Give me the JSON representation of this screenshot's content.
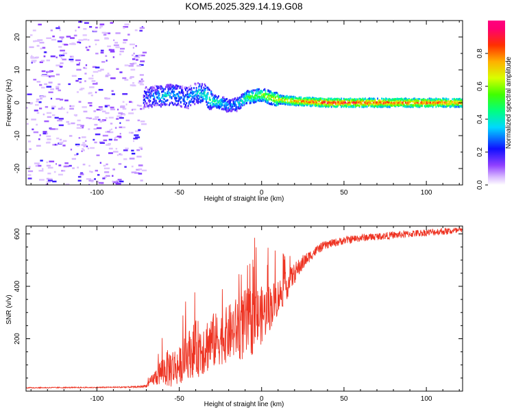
{
  "title": "KOM5.2025.329.14.19.G08",
  "chart_data": [
    {
      "type": "heatmap",
      "name": "spectrogram",
      "xlabel": "Height of straight line (km)",
      "ylabel": "Frequency (Hz)",
      "xlim": [
        -143,
        122
      ],
      "ylim": [
        -25,
        25
      ],
      "xticks": [
        -100,
        -50,
        0,
        50,
        100
      ],
      "yticks": [
        -20,
        -10,
        0,
        10,
        20
      ],
      "colorbar": {
        "label": "Normalized spectral amplitude",
        "range": [
          0,
          1
        ],
        "ticks": [
          0.0,
          0.2,
          0.4,
          0.6,
          0.8
        ],
        "colormap": "hsv-rainbow (white -> violet -> blue -> cyan -> green -> yellow -> orange -> red -> magenta)"
      },
      "noise_region_x": [
        -143,
        -72
      ],
      "signal_track": {
        "x": [
          -72,
          -65,
          -60,
          -55,
          -50,
          -45,
          -40,
          -35,
          -30,
          -25,
          -20,
          -15,
          -10,
          -5,
          0,
          5,
          10,
          20,
          40,
          60,
          80,
          100,
          122
        ],
        "freq": [
          1.5,
          2.0,
          2.0,
          2.5,
          2.0,
          1.5,
          3.0,
          2.5,
          0.5,
          0.0,
          -1.0,
          -0.5,
          1.5,
          2.0,
          2.5,
          1.5,
          1.0,
          0.5,
          0.0,
          0.0,
          0.0,
          0.0,
          0.0
        ],
        "amplitude": [
          0.2,
          0.3,
          0.35,
          0.35,
          0.3,
          0.3,
          0.35,
          0.4,
          0.45,
          0.4,
          0.3,
          0.35,
          0.5,
          0.55,
          0.6,
          0.65,
          0.7,
          0.8,
          0.9,
          0.9,
          0.85,
          0.85,
          0.8
        ]
      }
    },
    {
      "type": "line",
      "name": "snr",
      "xlabel": "Height of straight line (km)",
      "ylabel": "SNR (v/v)",
      "xlim": [
        -143,
        122
      ],
      "ylim": [
        0,
        630
      ],
      "xticks": [
        -100,
        -50,
        0,
        50,
        100
      ],
      "yticks": [
        200,
        400,
        600
      ],
      "color": "#ee3322",
      "series": [
        {
          "name": "SNR",
          "x": [
            -143,
            -100,
            -75,
            -70,
            -65,
            -60,
            -55,
            -50,
            -45,
            -40,
            -35,
            -30,
            -25,
            -20,
            -15,
            -10,
            -5,
            0,
            5,
            10,
            15,
            20,
            25,
            30,
            35,
            40,
            50,
            60,
            70,
            80,
            90,
            100,
            110,
            122
          ],
          "values": [
            13,
            14,
            16,
            20,
            50,
            80,
            90,
            95,
            140,
            160,
            170,
            190,
            200,
            220,
            240,
            250,
            270,
            290,
            320,
            360,
            400,
            450,
            490,
            520,
            545,
            560,
            575,
            585,
            590,
            595,
            600,
            605,
            610,
            612
          ],
          "noise_amplitude": [
            2,
            2,
            3,
            5,
            30,
            60,
            80,
            70,
            90,
            110,
            110,
            110,
            100,
            110,
            120,
            140,
            130,
            110,
            90,
            70,
            55,
            40,
            30,
            20,
            18,
            16,
            15,
            15,
            14,
            14,
            14,
            14,
            14,
            14
          ]
        }
      ]
    }
  ],
  "colors": {
    "snr_line": "#ee3322",
    "frame": "#000000",
    "background": "#ffffff"
  }
}
